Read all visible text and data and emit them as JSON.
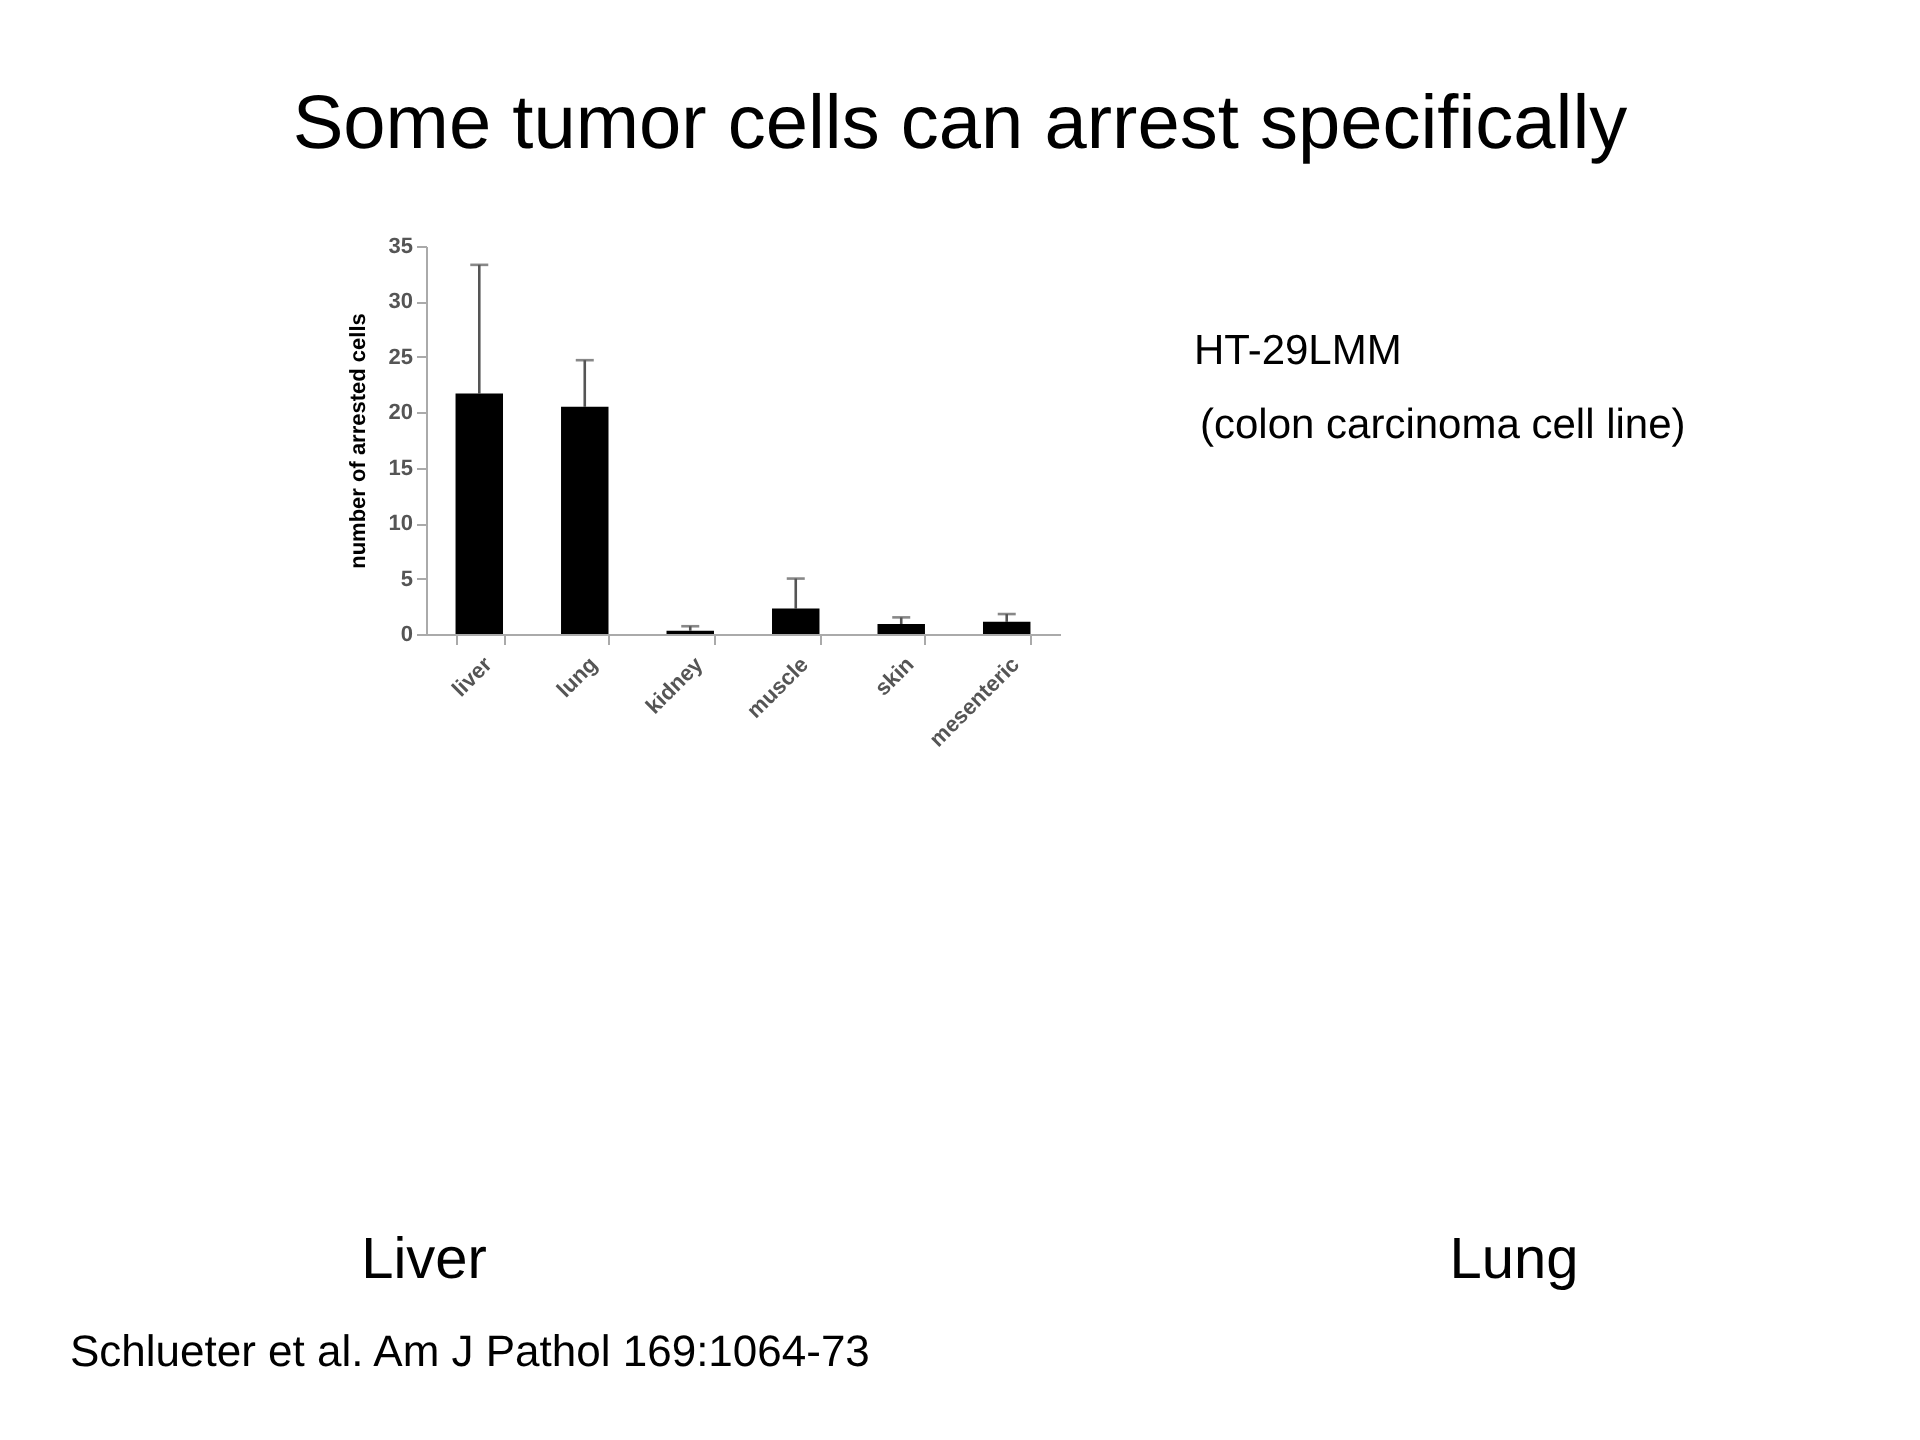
{
  "chart_data": {
    "type": "bar",
    "title": "Some tumor cells can arrest specifically",
    "ylabel": "number of arrested cells",
    "categories": [
      "liver",
      "lung",
      "kidney",
      "muscle",
      "skin",
      "mesenteric"
    ],
    "values": [
      21.7,
      20.5,
      0.3,
      2.3,
      0.9,
      1.1
    ],
    "color": "#000000",
    "errors": [
      [
        21.7,
        33.3
      ],
      [
        20.5,
        24.7
      ],
      [
        0.3,
        0.7
      ],
      [
        2.3,
        5.0
      ],
      [
        0.9,
        1.5
      ],
      [
        1.1,
        1.8
      ]
    ],
    "ylim": [
      0,
      35
    ],
    "yticks": [
      0,
      5,
      10,
      15,
      20,
      25,
      30,
      35
    ],
    "grid": false,
    "annotations": [
      "HT-29LMM",
      "(colon carcinoma cell line)",
      "Liver",
      "Lung",
      "Schlueter et al. Am J Pathol 169:1064-73"
    ]
  }
}
